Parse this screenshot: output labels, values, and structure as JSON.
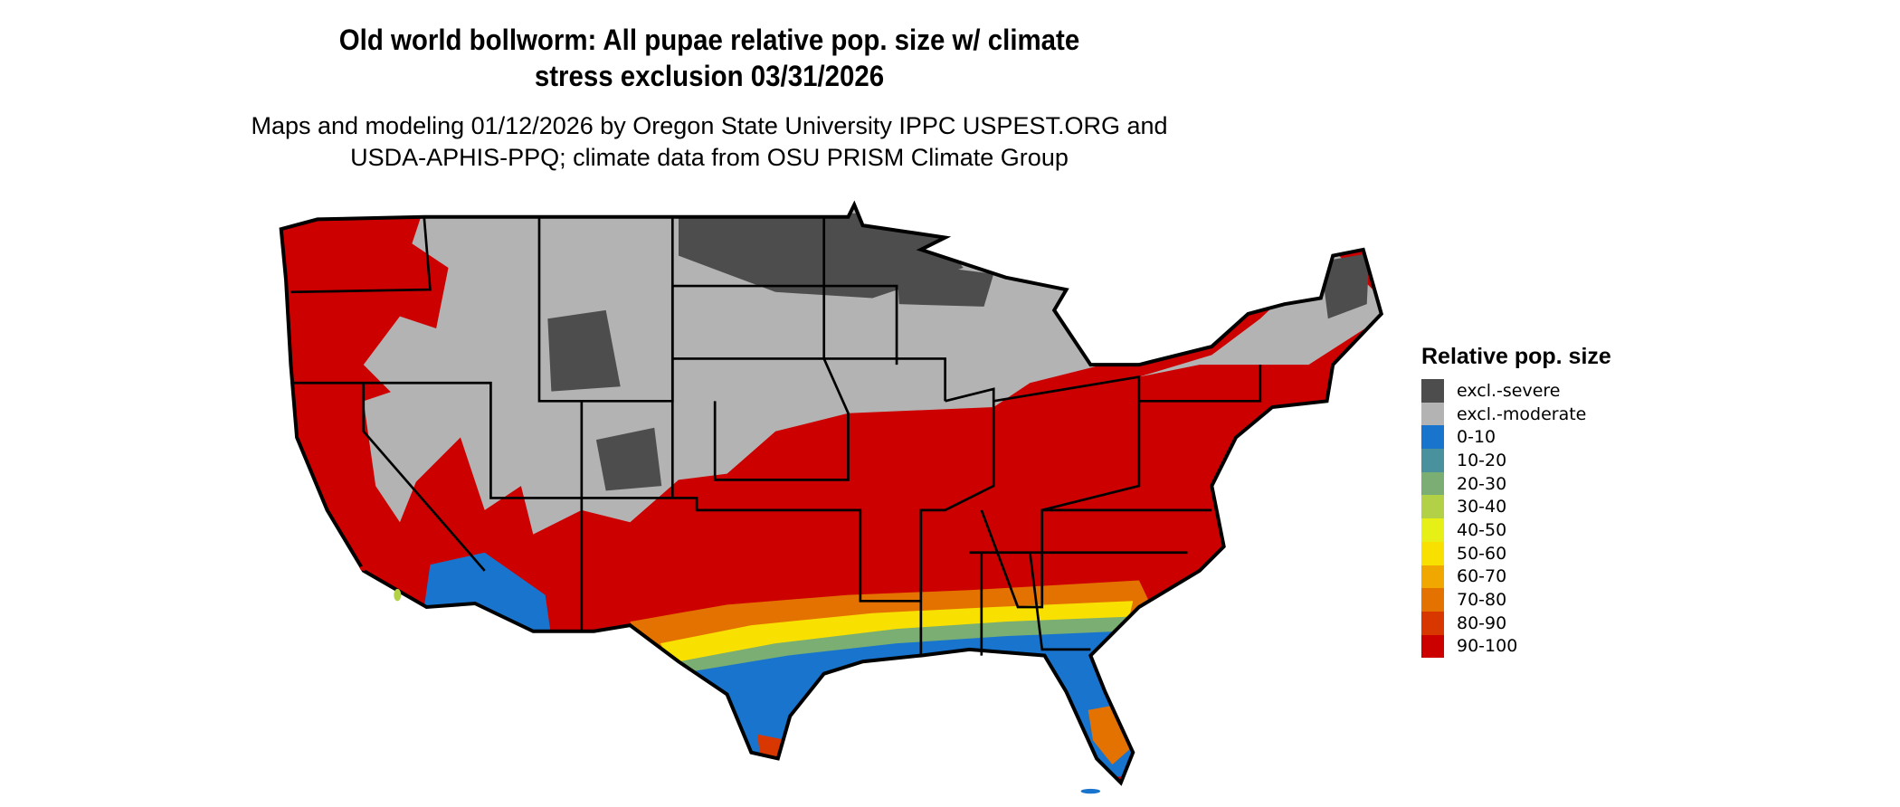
{
  "title": {
    "line1": "Old world bollworm: All pupae relative pop. size w/ climate",
    "line2": "stress exclusion 03/31/2026"
  },
  "subtitle": {
    "line1": "Maps and modeling 01/12/2026 by Oregon State University IPPC USPEST.ORG and",
    "line2": "USDA-APHIS-PPQ; climate data from OSU PRISM Climate Group"
  },
  "legend": {
    "title": "Relative pop. size",
    "items": [
      {
        "label": "excl.-severe",
        "color": "#4d4d4d"
      },
      {
        "label": "excl.-moderate",
        "color": "#b3b3b3"
      },
      {
        "label": "0-10",
        "color": "#1874cd"
      },
      {
        "label": "10-20",
        "color": "#4a919e"
      },
      {
        "label": "20-30",
        "color": "#7aae72"
      },
      {
        "label": "30-40",
        "color": "#b2d147"
      },
      {
        "label": "40-50",
        "color": "#e6f016"
      },
      {
        "label": "50-60",
        "color": "#f8e000"
      },
      {
        "label": "60-70",
        "color": "#f0a800"
      },
      {
        "label": "70-80",
        "color": "#e47200"
      },
      {
        "label": "80-90",
        "color": "#d83800"
      },
      {
        "label": "90-100",
        "color": "#cd0000"
      }
    ]
  },
  "map": {
    "region": "Contiguous United States",
    "dominant_class": "90-100"
  }
}
